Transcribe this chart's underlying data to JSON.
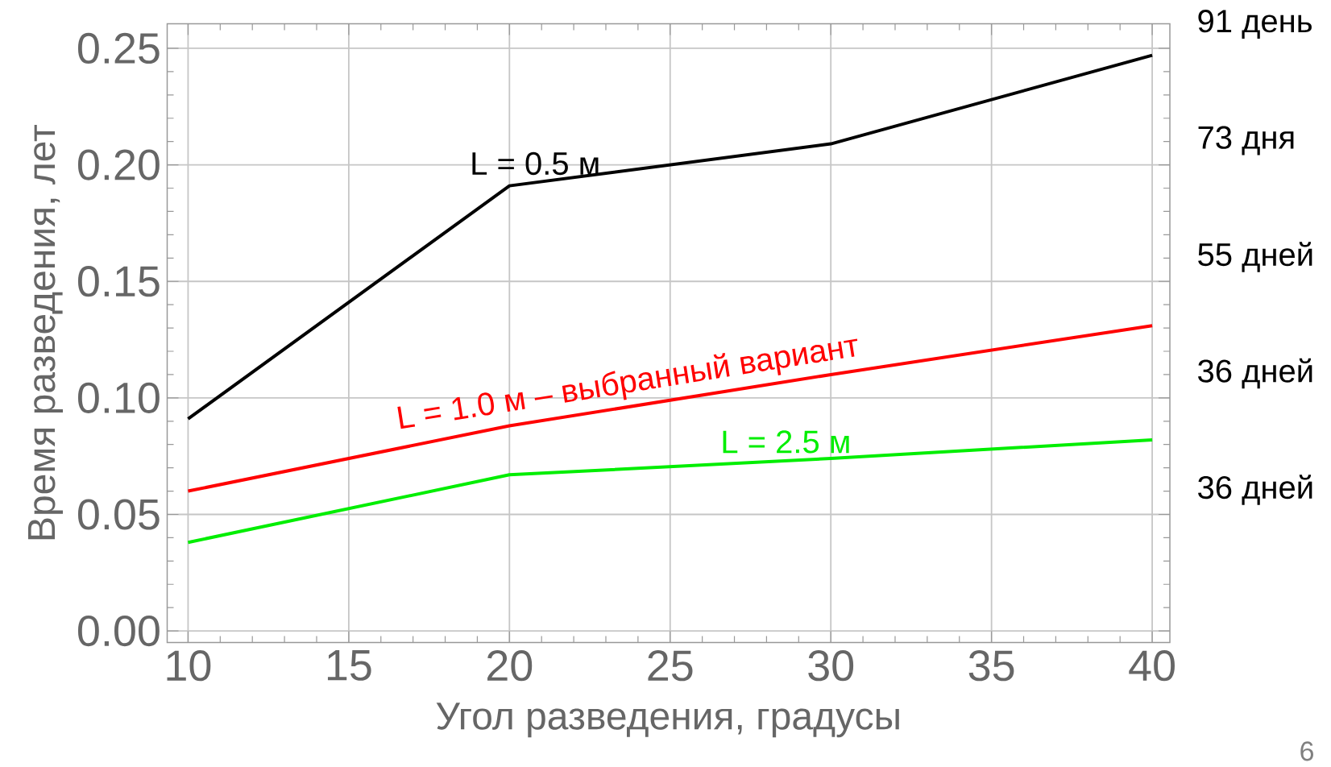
{
  "chart_data": {
    "type": "line",
    "xlabel": "Угол разведения, градусы",
    "ylabel": "Время разведения, лет",
    "x": [
      10,
      20,
      30,
      40
    ],
    "series": [
      {
        "name": "L = 0.5 м",
        "color": "#000000",
        "values": [
          0.091,
          0.191,
          0.209,
          0.247
        ]
      },
      {
        "name": "L = 1.0 м – выбранный вариант",
        "color": "#ff0000",
        "values": [
          0.06,
          0.088,
          0.11,
          0.131
        ]
      },
      {
        "name": "L = 2.5 м",
        "color": "#00ee00",
        "values": [
          0.038,
          0.067,
          0.074,
          0.082
        ]
      }
    ],
    "xlim": [
      9.35,
      40.55
    ],
    "ylim": [
      -0.005,
      0.2605
    ],
    "xticks": [
      10,
      15,
      20,
      25,
      30,
      35,
      40
    ],
    "yticks": [
      {
        "value": 0,
        "label": "0.00"
      },
      {
        "value": 0.05,
        "label": "0.05"
      },
      {
        "value": 0.1,
        "label": "0.10"
      },
      {
        "value": 0.15,
        "label": "0.15"
      },
      {
        "value": 0.2,
        "label": "0.20"
      },
      {
        "value": 0.25,
        "label": "0.25"
      }
    ],
    "grid": true,
    "annotations": [
      "91 день",
      "73 дня",
      "55 дней",
      "36 дней",
      "36 дней",
      "6"
    ]
  }
}
